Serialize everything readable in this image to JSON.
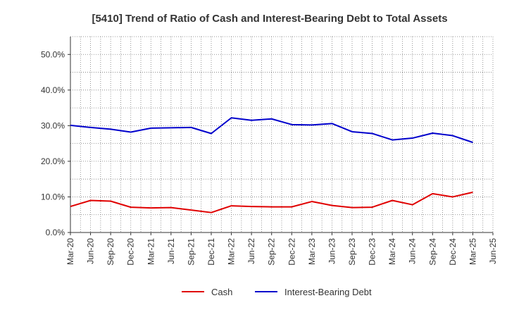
{
  "chart_data": {
    "type": "line",
    "title": "[5410]  Trend of Ratio of Cash and Interest-Bearing Debt to Total Assets",
    "xlabel": "",
    "ylabel": "",
    "categories": [
      "Mar-20",
      "Jun-20",
      "Sep-20",
      "Dec-20",
      "Mar-21",
      "Jun-21",
      "Sep-21",
      "Dec-21",
      "Mar-22",
      "Jun-22",
      "Sep-22",
      "Dec-22",
      "Mar-23",
      "Jun-23",
      "Sep-23",
      "Dec-23",
      "Mar-24",
      "Jun-24",
      "Sep-24",
      "Dec-24",
      "Mar-25",
      "Jun-25"
    ],
    "ylim": [
      0,
      55
    ],
    "yticks": [
      0,
      10,
      20,
      30,
      40,
      50
    ],
    "ytick_labels": [
      "0.0%",
      "10.0%",
      "20.0%",
      "30.0%",
      "40.0%",
      "50.0%"
    ],
    "grid": true,
    "legend_position": "bottom-center",
    "series": [
      {
        "name": "Cash",
        "color": "#e00000",
        "values": [
          7.3,
          9.0,
          8.8,
          7.1,
          6.9,
          7.0,
          6.3,
          5.6,
          7.5,
          7.3,
          7.2,
          7.2,
          8.7,
          7.6,
          7.0,
          7.1,
          9.0,
          7.8,
          10.9,
          10.0,
          11.3,
          null
        ]
      },
      {
        "name": "Interest-Bearing Debt",
        "color": "#0000cc",
        "values": [
          30.1,
          29.5,
          29.0,
          28.2,
          29.3,
          29.4,
          29.5,
          27.8,
          32.2,
          31.5,
          31.9,
          30.3,
          30.2,
          30.6,
          28.3,
          27.8,
          26.0,
          26.5,
          27.9,
          27.2,
          25.3,
          null
        ]
      }
    ]
  }
}
